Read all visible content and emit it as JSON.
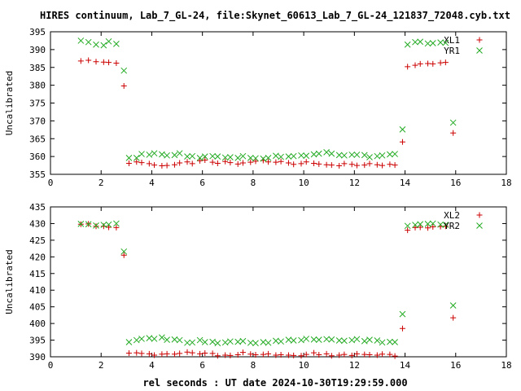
{
  "title": "HIRES continuum, Lab_7_GL-24, file:Skynet_60613_Lab_7_GL-24_121837_72048.cyb.txt",
  "xlabel": "rel seconds : UT date 2024-10-30T19:29:59.000",
  "colors": {
    "plus": "#cc0000",
    "cross": "#22aa22"
  },
  "chart_data": [
    {
      "type": "scatter",
      "title": "HIRES continuum, Lab_7_GL-24, file:Skynet_60613_Lab_7_GL-24_121837_72048.cyb.txt",
      "xlabel": "",
      "ylabel": "Uncalibrated",
      "xlim": [
        0,
        18
      ],
      "ylim": [
        355,
        395
      ],
      "xticks": [
        "0",
        "2",
        "4",
        "6",
        "8",
        "10",
        "12",
        "14",
        "16",
        "18"
      ],
      "yticks": [
        "355",
        "360",
        "365",
        "370",
        "375",
        "380",
        "385",
        "390",
        "395"
      ],
      "legend": "top-right",
      "grid": false,
      "series": [
        {
          "name": "XL1",
          "marker": "plus",
          "x": [
            1.2,
            1.5,
            1.8,
            2.1,
            2.3,
            2.6,
            2.9,
            3.1,
            3.4,
            3.6,
            3.9,
            4.1,
            4.4,
            4.6,
            4.9,
            5.1,
            5.4,
            5.6,
            5.9,
            6.1,
            6.4,
            6.6,
            6.9,
            7.1,
            7.4,
            7.6,
            7.9,
            8.1,
            8.4,
            8.6,
            8.9,
            9.1,
            9.4,
            9.6,
            9.9,
            10.1,
            10.4,
            10.6,
            10.9,
            11.1,
            11.4,
            11.6,
            11.9,
            12.1,
            12.4,
            12.6,
            12.9,
            13.1,
            13.4,
            13.6,
            13.9,
            14.1,
            14.4,
            14.6,
            14.9,
            15.1,
            15.4,
            15.6,
            15.9
          ],
          "y": [
            386.8,
            387.0,
            386.6,
            386.5,
            386.4,
            386.2,
            379.8,
            358.1,
            358.5,
            358.3,
            358.0,
            357.6,
            357.4,
            357.5,
            357.7,
            358.2,
            358.5,
            358.0,
            358.8,
            359.0,
            358.4,
            358.1,
            358.6,
            358.3,
            357.9,
            358.2,
            358.4,
            358.7,
            358.9,
            358.5,
            358.4,
            358.6,
            358.2,
            357.8,
            358.0,
            358.5,
            358.1,
            357.9,
            357.7,
            357.6,
            357.4,
            358.0,
            357.8,
            357.5,
            357.6,
            358.0,
            357.7,
            357.5,
            357.8,
            357.6,
            364.1,
            385.2,
            385.6,
            386.0,
            386.1,
            386.0,
            386.3,
            386.4,
            366.6
          ]
        },
        {
          "name": "YR1",
          "marker": "cross",
          "x": [
            1.2,
            1.5,
            1.8,
            2.1,
            2.3,
            2.6,
            2.9,
            3.1,
            3.4,
            3.6,
            3.9,
            4.1,
            4.4,
            4.6,
            4.9,
            5.1,
            5.4,
            5.6,
            5.9,
            6.1,
            6.4,
            6.6,
            6.9,
            7.1,
            7.4,
            7.6,
            7.9,
            8.1,
            8.4,
            8.6,
            8.9,
            9.1,
            9.4,
            9.6,
            9.9,
            10.1,
            10.4,
            10.6,
            10.9,
            11.1,
            11.4,
            11.6,
            11.9,
            12.1,
            12.4,
            12.6,
            12.9,
            13.1,
            13.4,
            13.6,
            13.9,
            14.1,
            14.4,
            14.6,
            14.9,
            15.1,
            15.4,
            15.6,
            15.9
          ],
          "y": [
            392.5,
            392.1,
            391.4,
            391.2,
            392.3,
            391.6,
            384.1,
            359.6,
            359.6,
            360.7,
            360.5,
            360.9,
            360.6,
            360.3,
            360.4,
            360.9,
            360.0,
            360.1,
            359.6,
            360.0,
            360.1,
            360.0,
            359.7,
            359.8,
            359.6,
            360.1,
            359.6,
            359.5,
            359.4,
            359.6,
            360.2,
            359.9,
            360.0,
            360.1,
            360.3,
            360.2,
            360.6,
            360.8,
            361.2,
            360.8,
            360.4,
            360.3,
            360.5,
            360.5,
            360.4,
            359.8,
            360.1,
            360.3,
            360.6,
            360.7,
            367.6,
            391.4,
            392.1,
            392.2,
            391.7,
            391.8,
            392.0,
            391.9,
            369.5
          ]
        }
      ]
    },
    {
      "type": "scatter",
      "title": "",
      "xlabel": "rel seconds : UT date 2024-10-30T19:29:59.000",
      "ylabel": "Uncalibrated",
      "xlim": [
        0,
        18
      ],
      "ylim": [
        390,
        435
      ],
      "xticks": [
        "0",
        "2",
        "4",
        "6",
        "8",
        "10",
        "12",
        "14",
        "16",
        "18"
      ],
      "yticks": [
        "390",
        "395",
        "400",
        "405",
        "410",
        "415",
        "420",
        "425",
        "430",
        "435"
      ],
      "legend": "top-right",
      "grid": false,
      "series": [
        {
          "name": "XL2",
          "marker": "plus",
          "x": [
            1.2,
            1.5,
            1.8,
            2.1,
            2.3,
            2.6,
            2.9,
            3.1,
            3.4,
            3.6,
            3.9,
            4.1,
            4.4,
            4.6,
            4.9,
            5.1,
            5.4,
            5.6,
            5.9,
            6.1,
            6.4,
            6.6,
            6.9,
            7.1,
            7.4,
            7.6,
            7.9,
            8.1,
            8.4,
            8.6,
            8.9,
            9.1,
            9.4,
            9.6,
            9.9,
            10.1,
            10.4,
            10.6,
            10.9,
            11.1,
            11.4,
            11.6,
            11.9,
            12.1,
            12.4,
            12.6,
            12.9,
            13.1,
            13.4,
            13.6,
            13.9,
            14.1,
            14.4,
            14.6,
            14.9,
            15.1,
            15.4,
            15.6,
            15.9
          ],
          "y": [
            429.8,
            429.9,
            429.2,
            429.2,
            428.9,
            428.8,
            420.5,
            391.1,
            391.2,
            391.0,
            390.9,
            390.5,
            390.8,
            390.9,
            390.8,
            391.0,
            391.4,
            391.2,
            390.9,
            391.1,
            391.0,
            390.3,
            390.5,
            390.4,
            390.6,
            391.3,
            390.8,
            390.6,
            390.7,
            390.9,
            390.5,
            390.6,
            390.5,
            390.4,
            390.3,
            390.7,
            391.2,
            390.6,
            390.9,
            390.3,
            390.5,
            390.7,
            390.4,
            390.9,
            390.7,
            390.6,
            390.5,
            390.8,
            390.7,
            390.2,
            398.5,
            428.0,
            428.8,
            428.9,
            428.7,
            429.0,
            429.1,
            429.2,
            401.7
          ]
        },
        {
          "name": "YR2",
          "marker": "cross",
          "x": [
            1.2,
            1.5,
            1.8,
            2.1,
            2.3,
            2.6,
            2.9,
            3.1,
            3.4,
            3.6,
            3.9,
            4.1,
            4.4,
            4.6,
            4.9,
            5.1,
            5.4,
            5.6,
            5.9,
            6.1,
            6.4,
            6.6,
            6.9,
            7.1,
            7.4,
            7.6,
            7.9,
            8.1,
            8.4,
            8.6,
            8.9,
            9.1,
            9.4,
            9.6,
            9.9,
            10.1,
            10.4,
            10.6,
            10.9,
            11.1,
            11.4,
            11.6,
            11.9,
            12.1,
            12.4,
            12.6,
            12.9,
            13.1,
            13.4,
            13.6,
            13.9,
            14.1,
            14.4,
            14.6,
            14.9,
            15.1,
            15.4,
            15.6,
            15.9
          ],
          "y": [
            429.9,
            429.8,
            429.4,
            429.6,
            429.7,
            430.0,
            421.6,
            394.4,
            395.0,
            395.4,
            395.6,
            395.4,
            395.8,
            395.1,
            395.2,
            395.0,
            394.2,
            394.3,
            395.0,
            394.4,
            394.5,
            394.1,
            394.3,
            394.6,
            394.5,
            394.7,
            394.2,
            394.1,
            394.4,
            394.2,
            394.8,
            394.6,
            395.1,
            394.9,
            395.0,
            395.4,
            395.2,
            395.1,
            395.3,
            395.2,
            394.9,
            394.8,
            395.0,
            395.3,
            394.7,
            395.1,
            394.9,
            394.3,
            394.5,
            394.4,
            402.8,
            429.3,
            429.6,
            429.8,
            429.9,
            430.0,
            429.7,
            429.6,
            405.4
          ]
        }
      ]
    }
  ]
}
